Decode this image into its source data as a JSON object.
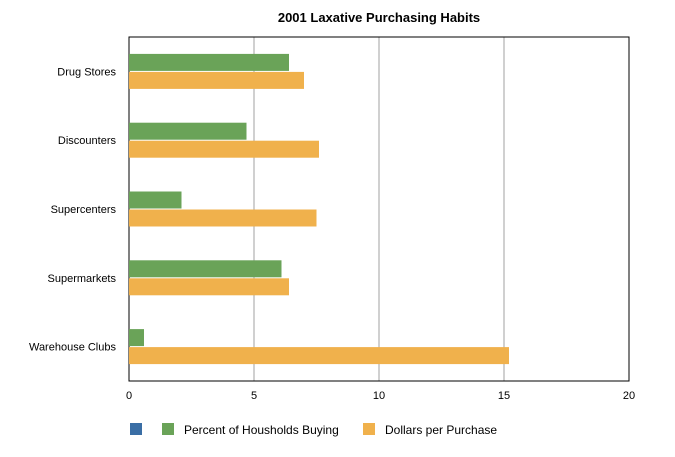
{
  "chart_data": {
    "type": "bar",
    "orientation": "horizontal",
    "title": "2001 Laxative Purchasing Habits",
    "categories": [
      "Drug Stores",
      "Discounters",
      "Supercenters",
      "Supermarkets",
      "Warehouse Clubs"
    ],
    "series": [
      {
        "name": "",
        "color": "#3a6ea5",
        "values": [
          null,
          null,
          null,
          null,
          null
        ]
      },
      {
        "name": "Percent of Housholds Buying",
        "color": "#6aa358",
        "values": [
          6.4,
          4.7,
          2.1,
          6.1,
          0.6
        ]
      },
      {
        "name": "Dollars per Purchase",
        "color": "#f0b14c",
        "values": [
          7.0,
          7.6,
          7.5,
          6.4,
          15.2
        ]
      }
    ],
    "xlim": [
      0,
      20
    ],
    "xticks": [
      0,
      5,
      10,
      15,
      20
    ],
    "grid": true,
    "legend_position": "bottom",
    "xlabel": "",
    "ylabel": ""
  }
}
